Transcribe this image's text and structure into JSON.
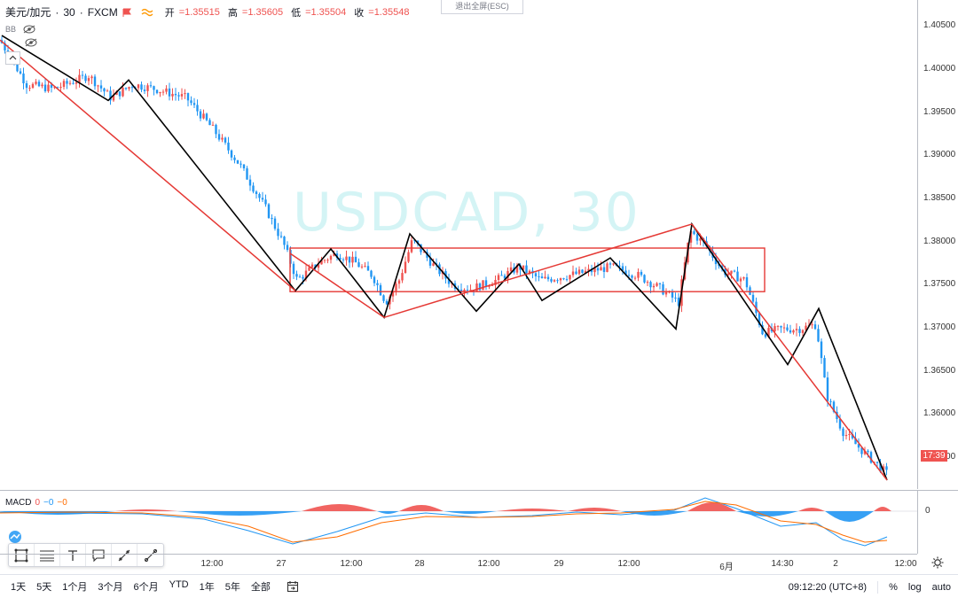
{
  "header": {
    "symbol": "美元/加元",
    "sep1": "·",
    "interval": "30",
    "sep2": "·",
    "exchange": "FXCM",
    "ohlc": [
      {
        "k": "开",
        "v": "=1.35515"
      },
      {
        "k": "高",
        "v": "=1.35605"
      },
      {
        "k": "低",
        "v": "=1.35504"
      },
      {
        "k": "收",
        "v": "=1.35548"
      }
    ],
    "exit_fullscreen": "退出全屏(ESC)"
  },
  "indicators": {
    "bb": "BB"
  },
  "watermark": "USDCAD, 30",
  "price_axis": {
    "labels": [
      "1.40500",
      "1.40000",
      "1.39500",
      "1.39000",
      "1.38500",
      "1.38000",
      "1.37500",
      "1.37000",
      "1.36500",
      "1.36000",
      "1.35500"
    ],
    "last_timer": "17:39"
  },
  "macd": {
    "name": "MACD",
    "v1": "0",
    "v2": "−0",
    "v3": "−0",
    "zero_label": "0"
  },
  "time_axis": {
    "labels": [
      "12:00",
      "27",
      "12:00",
      "28",
      "12:00",
      "29",
      "12:00",
      "6月",
      "14:30",
      "2",
      "12:00"
    ]
  },
  "bottom_bar": {
    "ranges": [
      "1天",
      "5天",
      "1个月",
      "3个月",
      "6个月",
      "YTD",
      "1年",
      "5年",
      "全部"
    ],
    "clock": "09:12:20 (UTC+8)",
    "percent": "%",
    "log": "log",
    "auto": "auto"
  },
  "colors": {
    "up": "#ef5350",
    "down": "#2196f3",
    "macd_line": "#2196f3",
    "signal_line": "#ff6d00",
    "drawing_red": "#e53935",
    "drawing_black": "#000000"
  },
  "chart_data": {
    "type": "candlestick",
    "symbol": "USDCAD",
    "ylim": [
      1.3535,
      1.4085
    ],
    "zigzag_black": [
      1.4045,
      1.3972,
      1.3995,
      1.3758,
      1.3805,
      1.3728,
      1.3822,
      1.3735,
      1.3788,
      1.3747,
      1.3795,
      1.3715,
      1.3833,
      1.3675,
      1.3738,
      1.3545
    ],
    "trendlines_red": [
      {
        "from": 1.404,
        "to": 1.3758
      },
      {
        "from": 1.38,
        "to": 1.3728
      },
      {
        "from": 1.3728,
        "to": 1.3833
      },
      {
        "from": 1.3833,
        "to": 1.3545
      }
    ],
    "range_box": {
      "top": 1.3806,
      "bottom": 1.3757
    }
  }
}
